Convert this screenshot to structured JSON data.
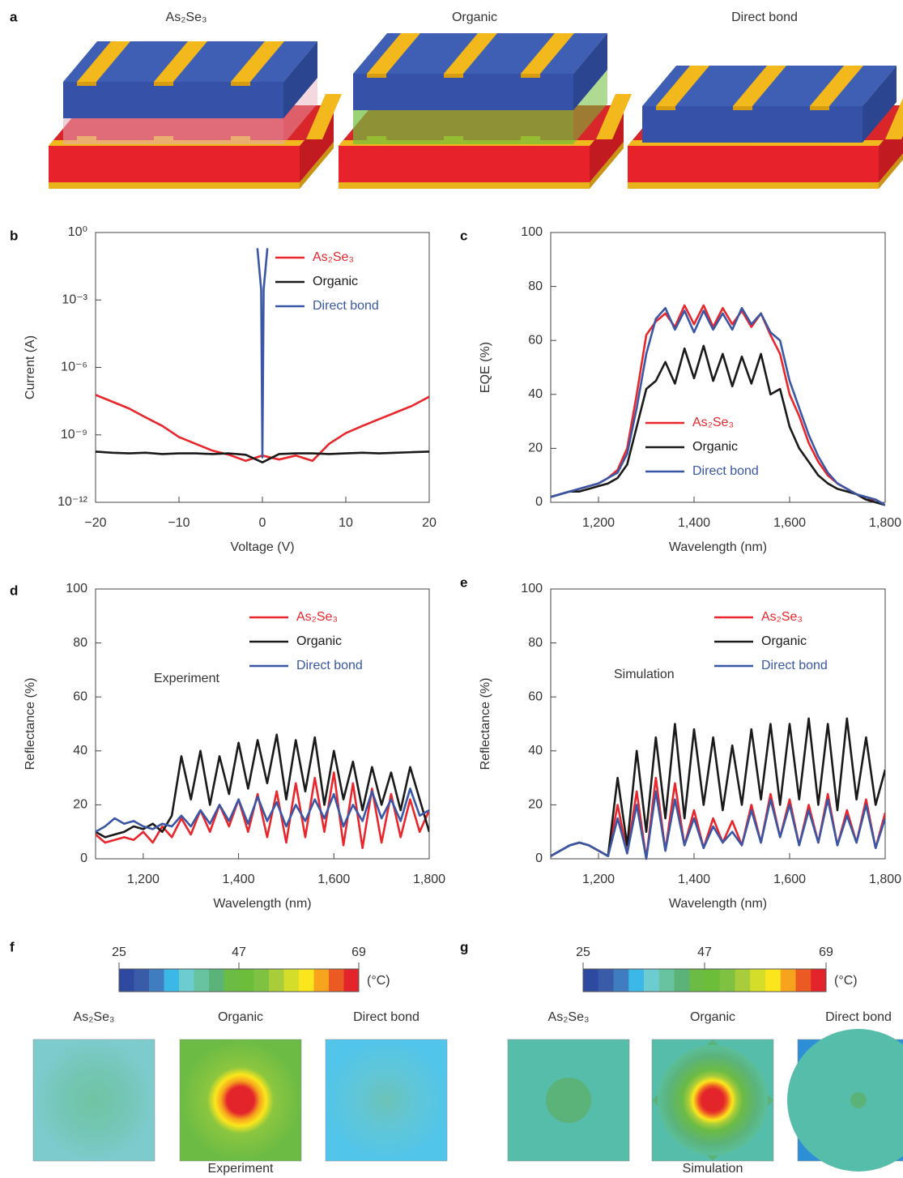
{
  "illustration": {
    "label": "a",
    "titles": [
      "As₂Se₃",
      "Organic",
      "Direct bond"
    ]
  },
  "chart_data": [
    {
      "type": "line",
      "label": "b",
      "xlabel": "Voltage (V)",
      "ylabel": "Current (A)",
      "yscale": "log",
      "xlim": [
        -20,
        20
      ],
      "xticks": [
        {
          "value": -20,
          "label": "−20"
        },
        {
          "value": -10,
          "label": "−10"
        },
        0,
        10,
        20
      ],
      "ylim": [
        1e-12,
        1
      ],
      "yticks": [
        {
          "value": 1e-12,
          "label": "10⁻¹²"
        },
        {
          "value": 1e-09,
          "label": "10⁻⁹"
        },
        {
          "value": 1e-06,
          "label": "10⁻⁶"
        },
        {
          "value": 0.001,
          "label": "10⁻³"
        },
        {
          "value": 1,
          "label": "10⁰"
        }
      ],
      "series": [
        {
          "name": "As₂Se₃",
          "color": "#e8262b",
          "x": [
            -20,
            -18,
            -16,
            -14,
            -12,
            -10,
            -8,
            -6,
            -4,
            -2,
            0,
            2,
            4,
            6,
            8,
            10,
            12,
            14,
            16,
            18,
            20
          ],
          "values": [
            6e-08,
            3e-08,
            1.5e-08,
            6e-09,
            2.5e-09,
            8e-10,
            4e-10,
            2e-10,
            1.3e-10,
            7e-11,
            1.2e-10,
            8e-11,
            1.2e-10,
            7e-11,
            4e-10,
            1.2e-09,
            2.5e-09,
            5e-09,
            1e-08,
            2e-08,
            5e-08
          ]
        },
        {
          "name": "Organic",
          "color": "#1a1a1a",
          "x": [
            -20,
            -18,
            -16,
            -14,
            -12,
            -10,
            -8,
            -6,
            -4,
            -2,
            0,
            2,
            4,
            6,
            8,
            10,
            12,
            14,
            16,
            18,
            20
          ],
          "values": [
            1.8e-10,
            1.6e-10,
            1.5e-10,
            1.6e-10,
            1.4e-10,
            1.5e-10,
            1.5e-10,
            1.4e-10,
            1.5e-10,
            1.3e-10,
            6e-11,
            1.4e-10,
            1.5e-10,
            1.5e-10,
            1.4e-10,
            1.5e-10,
            1.6e-10,
            1.5e-10,
            1.6e-10,
            1.7e-10,
            1.8e-10
          ]
        },
        {
          "name": "Direct bond",
          "color": "#3a57a5",
          "x": [
            -0.6,
            -0.15,
            0,
            0.15,
            0.6
          ],
          "values": [
            0.2,
            0.003,
            1e-10,
            0.003,
            0.2
          ]
        }
      ]
    },
    {
      "type": "line",
      "label": "c",
      "xlabel": "Wavelength (nm)",
      "ylabel": "EQE (%)",
      "xlim": [
        1100,
        1800
      ],
      "xticks": [
        {
          "value": 1200,
          "label": "1,200"
        },
        {
          "value": 1400,
          "label": "1,400"
        },
        {
          "value": 1600,
          "label": "1,600"
        },
        {
          "value": 1800,
          "label": "1,800"
        }
      ],
      "ylim": [
        0,
        100
      ],
      "yticks": [
        0,
        20,
        40,
        60,
        80,
        100
      ],
      "x": [
        1100,
        1120,
        1140,
        1160,
        1180,
        1200,
        1220,
        1240,
        1260,
        1280,
        1300,
        1320,
        1340,
        1360,
        1380,
        1400,
        1420,
        1440,
        1460,
        1480,
        1500,
        1520,
        1540,
        1560,
        1580,
        1600,
        1620,
        1640,
        1660,
        1680,
        1700,
        1720,
        1740,
        1760,
        1780,
        1800
      ],
      "series": [
        {
          "name": "As₂Se₃",
          "color": "#e8262b",
          "values": [
            2,
            3,
            4,
            5,
            6,
            7,
            9,
            12,
            20,
            40,
            62,
            67,
            70,
            65,
            73,
            66,
            73,
            65,
            72,
            66,
            71,
            65,
            70,
            62,
            55,
            40,
            32,
            22,
            15,
            10,
            7,
            5,
            3,
            1,
            1,
            -1
          ]
        },
        {
          "name": "Organic",
          "color": "#1a1a1a",
          "values": [
            2,
            3,
            4,
            4,
            5,
            6,
            7,
            9,
            14,
            28,
            42,
            45,
            52,
            44,
            57,
            46,
            58,
            45,
            55,
            43,
            54,
            44,
            55,
            40,
            42,
            28,
            20,
            15,
            10,
            7,
            5,
            4,
            3,
            1,
            0,
            -1
          ]
        },
        {
          "name": "Direct bond",
          "color": "#3a57a5",
          "values": [
            2,
            3,
            4,
            5,
            6,
            7,
            9,
            11,
            18,
            35,
            55,
            68,
            72,
            64,
            71,
            63,
            71,
            64,
            70,
            64,
            72,
            66,
            70,
            63,
            60,
            45,
            35,
            25,
            17,
            11,
            7,
            5,
            3,
            2,
            1,
            -1
          ]
        }
      ]
    },
    {
      "type": "line",
      "label": "d",
      "xlabel": "Wavelength (nm)",
      "ylabel": "Reflectance (%)",
      "annotation": "Experiment",
      "xlim": [
        1100,
        1800
      ],
      "xticks": [
        {
          "value": 1200,
          "label": "1,200"
        },
        {
          "value": 1400,
          "label": "1,400"
        },
        {
          "value": 1600,
          "label": "1,600"
        },
        {
          "value": 1800,
          "label": "1,800"
        }
      ],
      "ylim": [
        0,
        100
      ],
      "yticks": [
        0,
        20,
        40,
        60,
        80,
        100
      ],
      "x": [
        1100,
        1120,
        1140,
        1160,
        1180,
        1200,
        1220,
        1240,
        1260,
        1280,
        1300,
        1320,
        1340,
        1360,
        1380,
        1400,
        1420,
        1440,
        1460,
        1480,
        1500,
        1520,
        1540,
        1560,
        1580,
        1600,
        1620,
        1640,
        1660,
        1680,
        1700,
        1720,
        1740,
        1760,
        1780,
        1800
      ],
      "series": [
        {
          "name": "As₂Se₃",
          "color": "#e8262b",
          "values": [
            9,
            6,
            7,
            8,
            7,
            10,
            6,
            12,
            8,
            15,
            9,
            18,
            10,
            20,
            12,
            22,
            10,
            24,
            8,
            25,
            6,
            28,
            8,
            30,
            10,
            32,
            5,
            28,
            4,
            26,
            6,
            24,
            8,
            22,
            10,
            18
          ]
        },
        {
          "name": "Organic",
          "color": "#1a1a1a",
          "values": [
            10,
            8,
            9,
            10,
            12,
            11,
            13,
            10,
            16,
            38,
            22,
            40,
            20,
            38,
            24,
            43,
            26,
            44,
            28,
            46,
            22,
            44,
            25,
            45,
            20,
            40,
            22,
            36,
            18,
            34,
            20,
            32,
            18,
            34,
            22,
            10
          ]
        },
        {
          "name": "Direct bond",
          "color": "#3a57a5",
          "values": [
            10,
            12,
            15,
            13,
            14,
            12,
            11,
            13,
            12,
            16,
            12,
            18,
            13,
            20,
            14,
            22,
            13,
            23,
            14,
            21,
            12,
            20,
            14,
            22,
            15,
            24,
            12,
            20,
            14,
            25,
            15,
            22,
            14,
            26,
            16,
            18
          ]
        }
      ]
    },
    {
      "type": "line",
      "label": "e",
      "xlabel": "Wavelength (nm)",
      "ylabel": "Reflectance (%)",
      "annotation": "Simulation",
      "xlim": [
        1100,
        1800
      ],
      "xticks": [
        {
          "value": 1200,
          "label": "1,200"
        },
        {
          "value": 1400,
          "label": "1,400"
        },
        {
          "value": 1600,
          "label": "1,600"
        },
        {
          "value": 1800,
          "label": "1,800"
        }
      ],
      "ylim": [
        0,
        100
      ],
      "yticks": [
        0,
        20,
        40,
        60,
        80,
        100
      ],
      "x": [
        1100,
        1120,
        1140,
        1160,
        1180,
        1200,
        1220,
        1240,
        1260,
        1280,
        1300,
        1320,
        1340,
        1360,
        1380,
        1400,
        1420,
        1440,
        1460,
        1480,
        1500,
        1520,
        1540,
        1560,
        1580,
        1600,
        1620,
        1640,
        1660,
        1680,
        1700,
        1720,
        1740,
        1760,
        1780,
        1800
      ],
      "series": [
        {
          "name": "As₂Se₃",
          "color": "#e8262b",
          "values": [
            1,
            3,
            5,
            6,
            5,
            3,
            1,
            20,
            2,
            25,
            0,
            30,
            3,
            28,
            5,
            18,
            4,
            15,
            6,
            14,
            5,
            20,
            6,
            24,
            8,
            22,
            5,
            20,
            6,
            24,
            5,
            18,
            6,
            22,
            4,
            17
          ]
        },
        {
          "name": "Organic",
          "color": "#1a1a1a",
          "values": [
            1,
            3,
            5,
            6,
            5,
            3,
            1,
            30,
            5,
            40,
            10,
            45,
            15,
            50,
            15,
            48,
            20,
            45,
            18,
            42,
            20,
            48,
            22,
            50,
            20,
            50,
            22,
            52,
            20,
            50,
            18,
            52,
            22,
            45,
            20,
            33
          ]
        },
        {
          "name": "Direct bond",
          "color": "#3a57a5",
          "values": [
            1,
            3,
            5,
            6,
            5,
            3,
            1,
            15,
            2,
            20,
            0,
            25,
            3,
            22,
            5,
            15,
            4,
            12,
            6,
            10,
            5,
            18,
            6,
            22,
            8,
            20,
            5,
            18,
            6,
            22,
            5,
            16,
            6,
            20,
            4,
            15
          ]
        }
      ]
    }
  ],
  "thermal": [
    {
      "label": "f",
      "lim": [
        25,
        69
      ],
      "ticks": [
        25,
        47,
        69
      ],
      "unit": "(°C)",
      "titles": [
        "As₂Se₃",
        "Organic",
        "Direct bond"
      ],
      "caption": "Experiment",
      "colors": [
        "#2e4aa0",
        "#3a5ba8",
        "#3f7cc0",
        "#3cb8e8",
        "#6cccd0",
        "#67c3a0",
        "#5bb37a",
        "#6bbb45",
        "#6bbd3a",
        "#7fc241",
        "#a8cc3a",
        "#d4dd2a",
        "#fbe61d",
        "#f7a31e",
        "#ec5a24",
        "#e3242b"
      ]
    },
    {
      "label": "g",
      "lim": [
        25,
        69
      ],
      "ticks": [
        25,
        47,
        69
      ],
      "unit": "(°C)",
      "titles": [
        "As₂Se₃",
        "Organic",
        "Direct bond"
      ],
      "caption": "Simulation",
      "colors": [
        "#2e4aa0",
        "#3a5ba8",
        "#3f7cc0",
        "#3cb8e8",
        "#6cccd0",
        "#67c3a0",
        "#5bb37a",
        "#6bbb45",
        "#6bbd3a",
        "#7fc241",
        "#a8cc3a",
        "#d4dd2a",
        "#fbe61d",
        "#f7a31e",
        "#ec5a24",
        "#e3242b"
      ]
    }
  ]
}
